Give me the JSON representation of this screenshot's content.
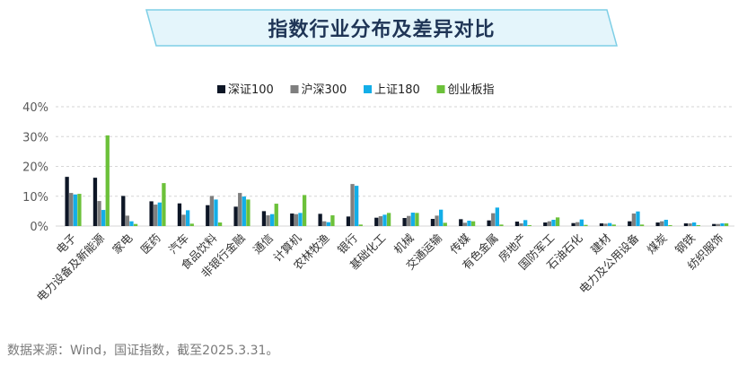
{
  "title": "指数行业分布及差异对比",
  "source": "数据来源：Wind，国证指数，截至2025.3.31。",
  "colors": {
    "series": [
      "#0d1626",
      "#7f7f7f",
      "#13aee8",
      "#6cc13a"
    ],
    "axis_text": "#5a5a5a",
    "grid": "#d6d6d6",
    "banner_fill": "#e4f5fb",
    "banner_stroke": "#7fcfe6",
    "title": "#1f3556"
  },
  "chart_data": {
    "type": "bar",
    "legend_position": "top",
    "ylim": [
      0,
      40
    ],
    "yticks": [
      0,
      10,
      20,
      30,
      40
    ],
    "ytick_labels": [
      "0%",
      "10%",
      "20%",
      "30%",
      "40%"
    ],
    "grid": true,
    "categories": [
      "电子",
      "电力设备及新能源",
      "家电",
      "医药",
      "汽车",
      "食品饮料",
      "非银行金融",
      "通信",
      "计算机",
      "农林牧渔",
      "银行",
      "基础化工",
      "机械",
      "交通运输",
      "传媒",
      "有色金属",
      "房地产",
      "国防军工",
      "石油石化",
      "建材",
      "电力及公用设备",
      "煤炭",
      "钢铁",
      "纺织服饰"
    ],
    "series": [
      {
        "name": "深证100",
        "values": [
          16.5,
          16.2,
          10.1,
          8.3,
          7.6,
          7.0,
          6.5,
          5.0,
          4.2,
          4.1,
          3.2,
          2.8,
          2.7,
          2.4,
          2.3,
          1.9,
          1.5,
          1.2,
          1.0,
          0.9,
          1.6,
          1.2,
          0.9,
          0.7
        ]
      },
      {
        "name": "沪深300",
        "values": [
          11.1,
          8.4,
          3.5,
          7.2,
          3.8,
          10.1,
          11.1,
          3.6,
          4.0,
          1.6,
          14.1,
          3.3,
          3.4,
          3.5,
          1.1,
          4.3,
          0.9,
          1.6,
          1.3,
          0.8,
          4.2,
          1.6,
          0.9,
          0.7
        ]
      },
      {
        "name": "上证180",
        "values": [
          10.6,
          5.4,
          1.6,
          7.9,
          5.3,
          8.9,
          9.9,
          4.0,
          4.4,
          1.3,
          13.5,
          3.8,
          4.5,
          5.5,
          1.8,
          6.2,
          2.0,
          2.1,
          2.2,
          1.0,
          4.9,
          2.1,
          1.2,
          0.9
        ]
      },
      {
        "name": "创业板指",
        "values": [
          10.8,
          30.4,
          0.7,
          14.4,
          0.8,
          1.2,
          8.9,
          7.5,
          10.4,
          3.6,
          0.5,
          4.4,
          4.4,
          1.1,
          1.6,
          0.5,
          0.3,
          2.9,
          0.4,
          0.5,
          0.5,
          0.3,
          0.3,
          0.9
        ]
      }
    ]
  }
}
